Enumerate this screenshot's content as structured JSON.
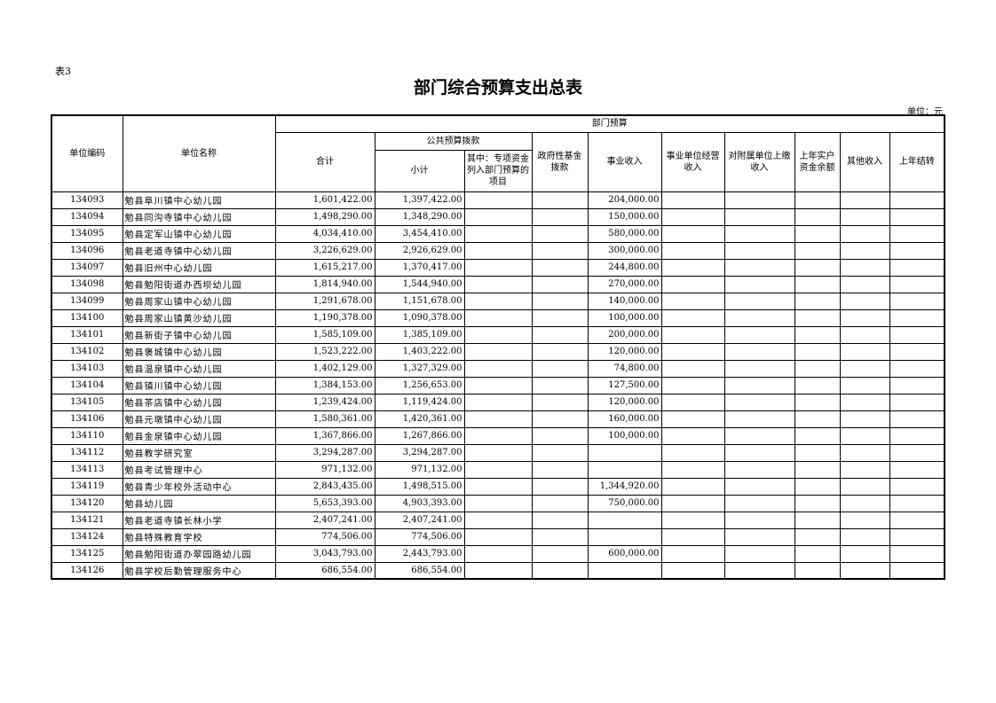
{
  "table_tag": "表3",
  "title": "部门综合预算支出总表",
  "unit": "单位：元",
  "headers": {
    "code": "单位编码",
    "name": "单位名称",
    "dept_budget": "部门预算",
    "total": "合计",
    "public_budget": "公共预算拨款",
    "subtotal": "小计",
    "special": "其中：专项资金列入部门预算的项目",
    "gov_fund": "政府性基金拨款",
    "business_income": "事业收入",
    "operating_income": "事业单位经营收入",
    "subsidiary_income": "对附属单位上缴收入",
    "prior_balance": "上年实户资金余额",
    "other_income": "其他收入",
    "carryover": "上年结转"
  },
  "rows": [
    {
      "code": "134093",
      "name": "勉县阜川镇中心幼儿园",
      "total": "1,601,422.00",
      "subtotal": "1,397,422.00",
      "business_income": "204,000.00"
    },
    {
      "code": "134094",
      "name": "勉县同沟寺镇中心幼儿园",
      "total": "1,498,290.00",
      "subtotal": "1,348,290.00",
      "business_income": "150,000.00"
    },
    {
      "code": "134095",
      "name": "勉县定军山镇中心幼儿园",
      "total": "4,034,410.00",
      "subtotal": "3,454,410.00",
      "business_income": "580,000.00"
    },
    {
      "code": "134096",
      "name": "勉县老道寺镇中心幼儿园",
      "total": "3,226,629.00",
      "subtotal": "2,926,629.00",
      "business_income": "300,000.00"
    },
    {
      "code": "134097",
      "name": "勉县旧州中心幼儿园",
      "total": "1,615,217.00",
      "subtotal": "1,370,417.00",
      "business_income": "244,800.00"
    },
    {
      "code": "134098",
      "name": "勉县勉阳街道办西坝幼儿园",
      "total": "1,814,940.00",
      "subtotal": "1,544,940.00",
      "business_income": "270,000.00"
    },
    {
      "code": "134099",
      "name": "勉县周家山镇中心幼儿园",
      "total": "1,291,678.00",
      "subtotal": "1,151,678.00",
      "business_income": "140,000.00"
    },
    {
      "code": "134100",
      "name": "勉县周家山镇黄沙幼儿园",
      "total": "1,190,378.00",
      "subtotal": "1,090,378.00",
      "business_income": "100,000.00"
    },
    {
      "code": "134101",
      "name": "勉县新街子镇中心幼儿园",
      "total": "1,585,109.00",
      "subtotal": "1,385,109.00",
      "business_income": "200,000.00"
    },
    {
      "code": "134102",
      "name": "勉县褒城镇中心幼儿园",
      "total": "1,523,222.00",
      "subtotal": "1,403,222.00",
      "business_income": "120,000.00"
    },
    {
      "code": "134103",
      "name": "勉县温泉镇中心幼儿园",
      "total": "1,402,129.00",
      "subtotal": "1,327,329.00",
      "business_income": "74,800.00"
    },
    {
      "code": "134104",
      "name": "勉县镇川镇中心幼儿园",
      "total": "1,384,153.00",
      "subtotal": "1,256,653.00",
      "business_income": "127,500.00"
    },
    {
      "code": "134105",
      "name": "勉县茶店镇中心幼儿园",
      "total": "1,239,424.00",
      "subtotal": "1,119,424.00",
      "business_income": "120,000.00"
    },
    {
      "code": "134106",
      "name": "勉县元墩镇中心幼儿园",
      "total": "1,580,361.00",
      "subtotal": "1,420,361.00",
      "business_income": "160,000.00"
    },
    {
      "code": "134110",
      "name": "勉县金泉镇中心幼儿园",
      "total": "1,367,866.00",
      "subtotal": "1,267,866.00",
      "business_income": "100,000.00"
    },
    {
      "code": "134112",
      "name": "勉县教学研究室",
      "total": "3,294,287.00",
      "subtotal": "3,294,287.00",
      "business_income": ""
    },
    {
      "code": "134113",
      "name": "勉县考试管理中心",
      "total": "971,132.00",
      "subtotal": "971,132.00",
      "business_income": ""
    },
    {
      "code": "134119",
      "name": "勉县青少年校外活动中心",
      "total": "2,843,435.00",
      "subtotal": "1,498,515.00",
      "business_income": "1,344,920.00"
    },
    {
      "code": "134120",
      "name": "勉县幼儿园",
      "total": "5,653,393.00",
      "subtotal": "4,903,393.00",
      "business_income": "750,000.00"
    },
    {
      "code": "134121",
      "name": "勉县老道寺镇长林小学",
      "total": "2,407,241.00",
      "subtotal": "2,407,241.00",
      "business_income": ""
    },
    {
      "code": "134124",
      "name": "勉县特殊教育学校",
      "total": "774,506.00",
      "subtotal": "774,506.00",
      "business_income": ""
    },
    {
      "code": "134125",
      "name": "勉县勉阳街道办翠园路幼儿园",
      "total": "3,043,793.00",
      "subtotal": "2,443,793.00",
      "business_income": "600,000.00"
    },
    {
      "code": "134126",
      "name": "勉县学校后勤管理服务中心",
      "total": "686,554.00",
      "subtotal": "686,554.00",
      "business_income": ""
    }
  ]
}
